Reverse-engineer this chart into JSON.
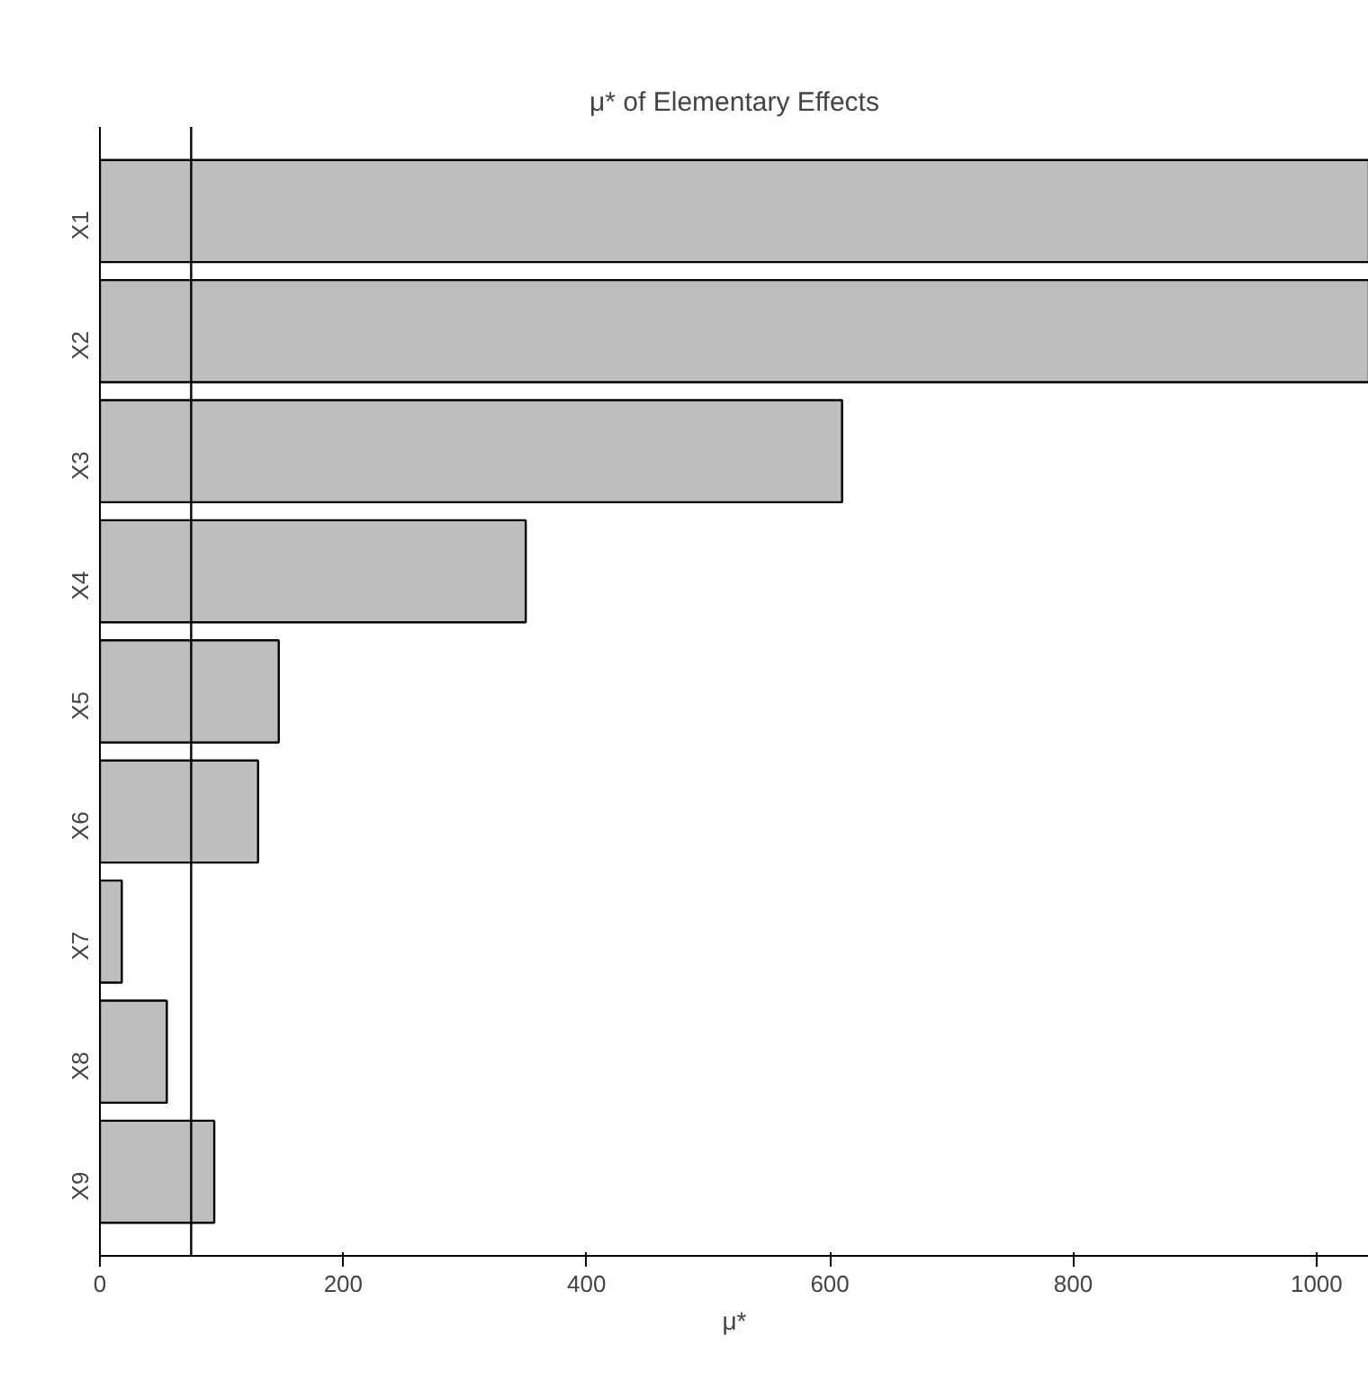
{
  "chart_data": {
    "type": "bar",
    "orientation": "horizontal",
    "title": "μ* of Elementary Effects",
    "xlabel": "μ*",
    "categories": [
      "X1",
      "X2",
      "X3",
      "X4",
      "X5",
      "X6",
      "X7",
      "X8",
      "X9"
    ],
    "values": [
      1043,
      1043,
      610,
      350,
      147,
      130,
      18,
      55,
      94
    ],
    "color": "#bebebe",
    "xlim": [
      0,
      1043
    ],
    "xticks": [
      0,
      200,
      400,
      600,
      800,
      1000
    ],
    "ref_lines": [
      {
        "axis": "x",
        "value": 75,
        "label": null
      }
    ],
    "grid": false
  }
}
